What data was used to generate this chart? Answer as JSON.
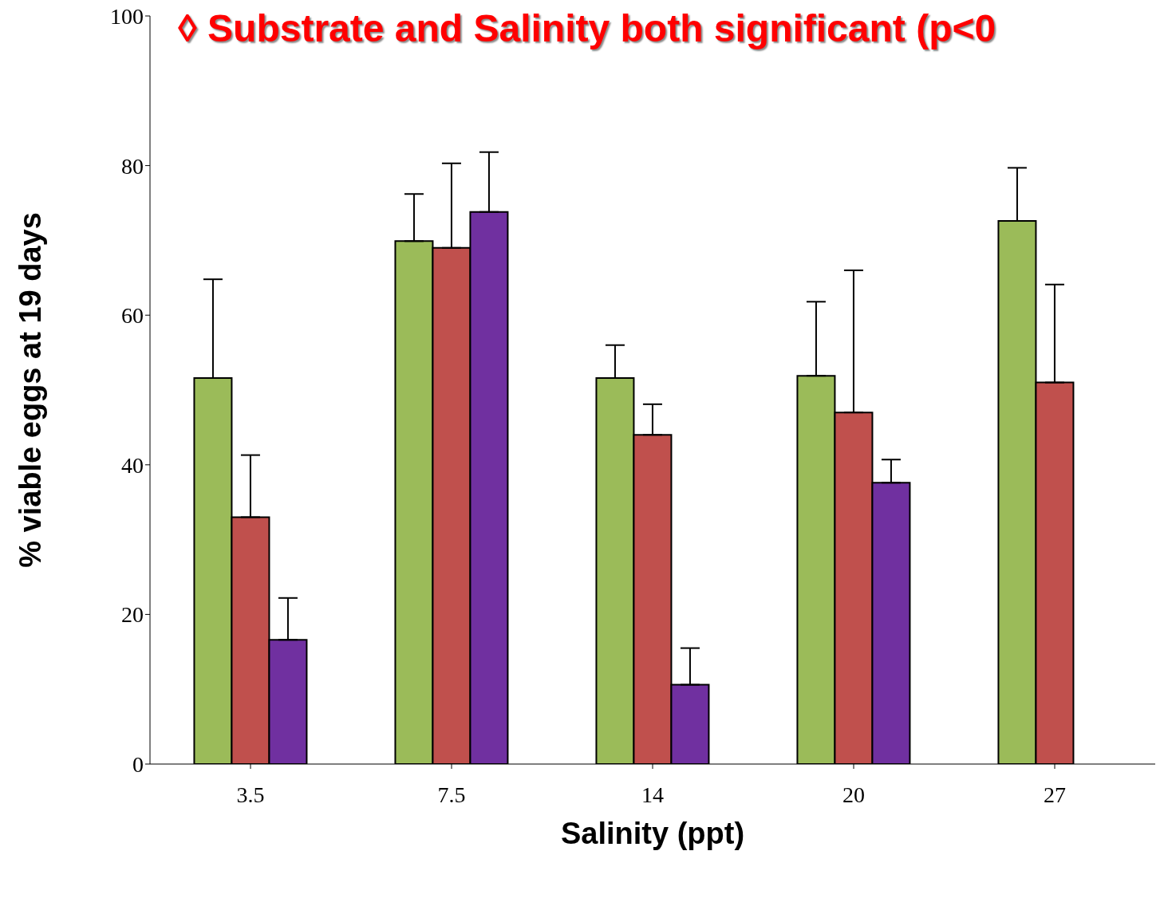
{
  "chart_data": {
    "type": "bar",
    "title": "◊ Substrate and Salinity both significant (p<0",
    "xlabel": "Salinity (ppt)",
    "ylabel": "% viable eggs at 19 days",
    "categories": [
      "3.5",
      "7.5",
      "14",
      "20",
      "27"
    ],
    "series": [
      {
        "color": "#9bbb59",
        "values": [
          51.6,
          69.9,
          51.6,
          51.9,
          72.6
        ],
        "errors": [
          [
            51.6,
            64.8
          ],
          [
            69.9,
            76.2
          ],
          [
            51.6,
            56.0
          ],
          [
            51.9,
            61.8
          ],
          [
            72.6,
            79.7
          ]
        ]
      },
      {
        "color": "#c0504d",
        "values": [
          33.0,
          69.0,
          44.0,
          47.0,
          51.0
        ],
        "errors": [
          [
            33.0,
            41.3
          ],
          [
            69.0,
            80.3
          ],
          [
            44.0,
            48.1
          ],
          [
            47.0,
            66.0
          ],
          [
            51.0,
            64.1
          ]
        ]
      },
      {
        "color": "#7030a0",
        "values": [
          16.6,
          73.8,
          10.6,
          37.6,
          0
        ],
        "errors": [
          [
            16.6,
            22.2
          ],
          [
            73.8,
            81.8
          ],
          [
            10.6,
            15.5
          ],
          [
            37.6,
            40.7
          ],
          null
        ]
      }
    ],
    "ylim": [
      0,
      100
    ],
    "yticks": [
      0,
      20,
      40,
      60,
      80,
      100
    ],
    "grid": false,
    "legend": false
  }
}
